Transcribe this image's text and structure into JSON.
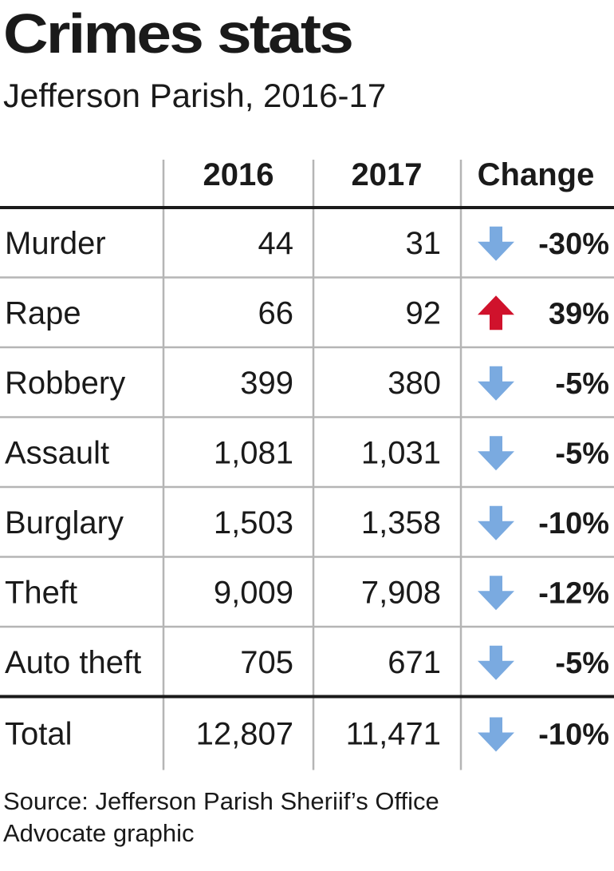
{
  "title": "Crimes stats",
  "subtitle": "Jefferson Parish, 2016-17",
  "chart_data": {
    "type": "table",
    "columns": [
      "",
      "2016",
      "2017",
      "Change"
    ],
    "rows": [
      {
        "label": "Murder",
        "y2016": "44",
        "y2017": "31",
        "change": "-30%",
        "direction": "down"
      },
      {
        "label": "Rape",
        "y2016": "66",
        "y2017": "92",
        "change": "39%",
        "direction": "up"
      },
      {
        "label": "Robbery",
        "y2016": "399",
        "y2017": "380",
        "change": "-5%",
        "direction": "down"
      },
      {
        "label": "Assault",
        "y2016": "1,081",
        "y2017": "1,031",
        "change": "-5%",
        "direction": "down"
      },
      {
        "label": "Burglary",
        "y2016": "1,503",
        "y2017": "1,358",
        "change": "-10%",
        "direction": "down"
      },
      {
        "label": "Theft",
        "y2016": "9,009",
        "y2017": "7,908",
        "change": "-12%",
        "direction": "down"
      },
      {
        "label": "Auto theft",
        "y2016": "705",
        "y2017": "671",
        "change": "-5%",
        "direction": "down"
      }
    ],
    "total": {
      "label": "Total",
      "y2016": "12,807",
      "y2017": "11,471",
      "change": "-10%",
      "direction": "down"
    }
  },
  "colors": {
    "down_arrow": "#7aaae0",
    "up_arrow": "#d0122c",
    "rule": "#1a1a1a",
    "grid": "#b5b5b5"
  },
  "footer": {
    "source": "Source: Jefferson Parish Sheriif’s Office",
    "credit": "Advocate graphic"
  }
}
